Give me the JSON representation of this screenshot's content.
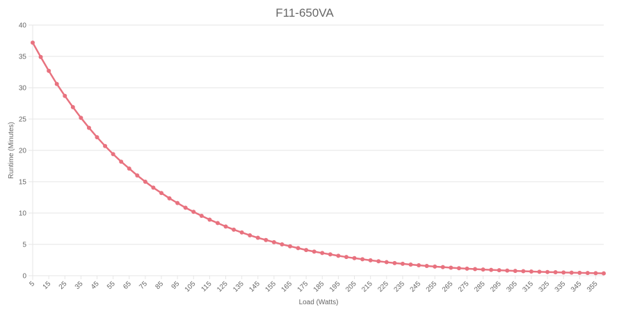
{
  "chart_data": {
    "type": "line",
    "title": "F11-650VA",
    "xlabel": "Load (Watts)",
    "ylabel": "Runtime (Minutes)",
    "ylim": [
      0,
      40
    ],
    "yticks": [
      "0",
      "5",
      "10",
      "15",
      "20",
      "25",
      "30",
      "35",
      "40"
    ],
    "xtick_labels": [
      "5",
      "15",
      "25",
      "35",
      "45",
      "55",
      "65",
      "75",
      "85",
      "95",
      "105",
      "115",
      "125",
      "135",
      "145",
      "155",
      "165",
      "175",
      "185",
      "195",
      "205",
      "215",
      "225",
      "235",
      "245",
      "255",
      "265",
      "275",
      "285",
      "295",
      "305",
      "315",
      "325",
      "335",
      "345",
      "355"
    ],
    "grid": true,
    "legend": "none",
    "color": "#e8727f",
    "x": [
      5,
      10,
      15,
      20,
      25,
      30,
      35,
      40,
      45,
      50,
      55,
      60,
      65,
      70,
      75,
      80,
      85,
      90,
      95,
      100,
      105,
      110,
      115,
      120,
      125,
      130,
      135,
      140,
      145,
      150,
      155,
      160,
      165,
      170,
      175,
      180,
      185,
      190,
      195,
      200,
      205,
      210,
      215,
      220,
      225,
      230,
      235,
      240,
      245,
      250,
      255,
      260,
      265,
      270,
      275,
      280,
      285,
      290,
      295,
      300,
      305,
      310,
      315,
      320,
      325,
      330,
      335,
      340,
      345,
      350,
      355,
      360
    ],
    "series": [
      {
        "values": [
          37.2,
          34.9,
          32.7,
          30.6,
          28.7,
          26.9,
          25.2,
          23.6,
          22.1,
          20.7,
          19.4,
          18.2,
          17.1,
          16.0,
          15.0,
          14.05,
          13.2,
          12.35,
          11.6,
          10.85,
          10.2,
          9.55,
          8.95,
          8.4,
          7.85,
          7.35,
          6.9,
          6.45,
          6.05,
          5.7,
          5.35,
          5.0,
          4.7,
          4.4,
          4.1,
          3.85,
          3.62,
          3.4,
          3.18,
          2.98,
          2.8,
          2.62,
          2.46,
          2.3,
          2.16,
          2.02,
          1.9,
          1.78,
          1.67,
          1.56,
          1.46,
          1.37,
          1.28,
          1.2,
          1.13,
          1.06,
          0.99,
          0.93,
          0.87,
          0.82,
          0.77,
          0.72,
          0.67,
          0.63,
          0.59,
          0.55,
          0.52,
          0.49,
          0.46,
          0.43,
          0.4,
          0.38
        ]
      }
    ]
  }
}
